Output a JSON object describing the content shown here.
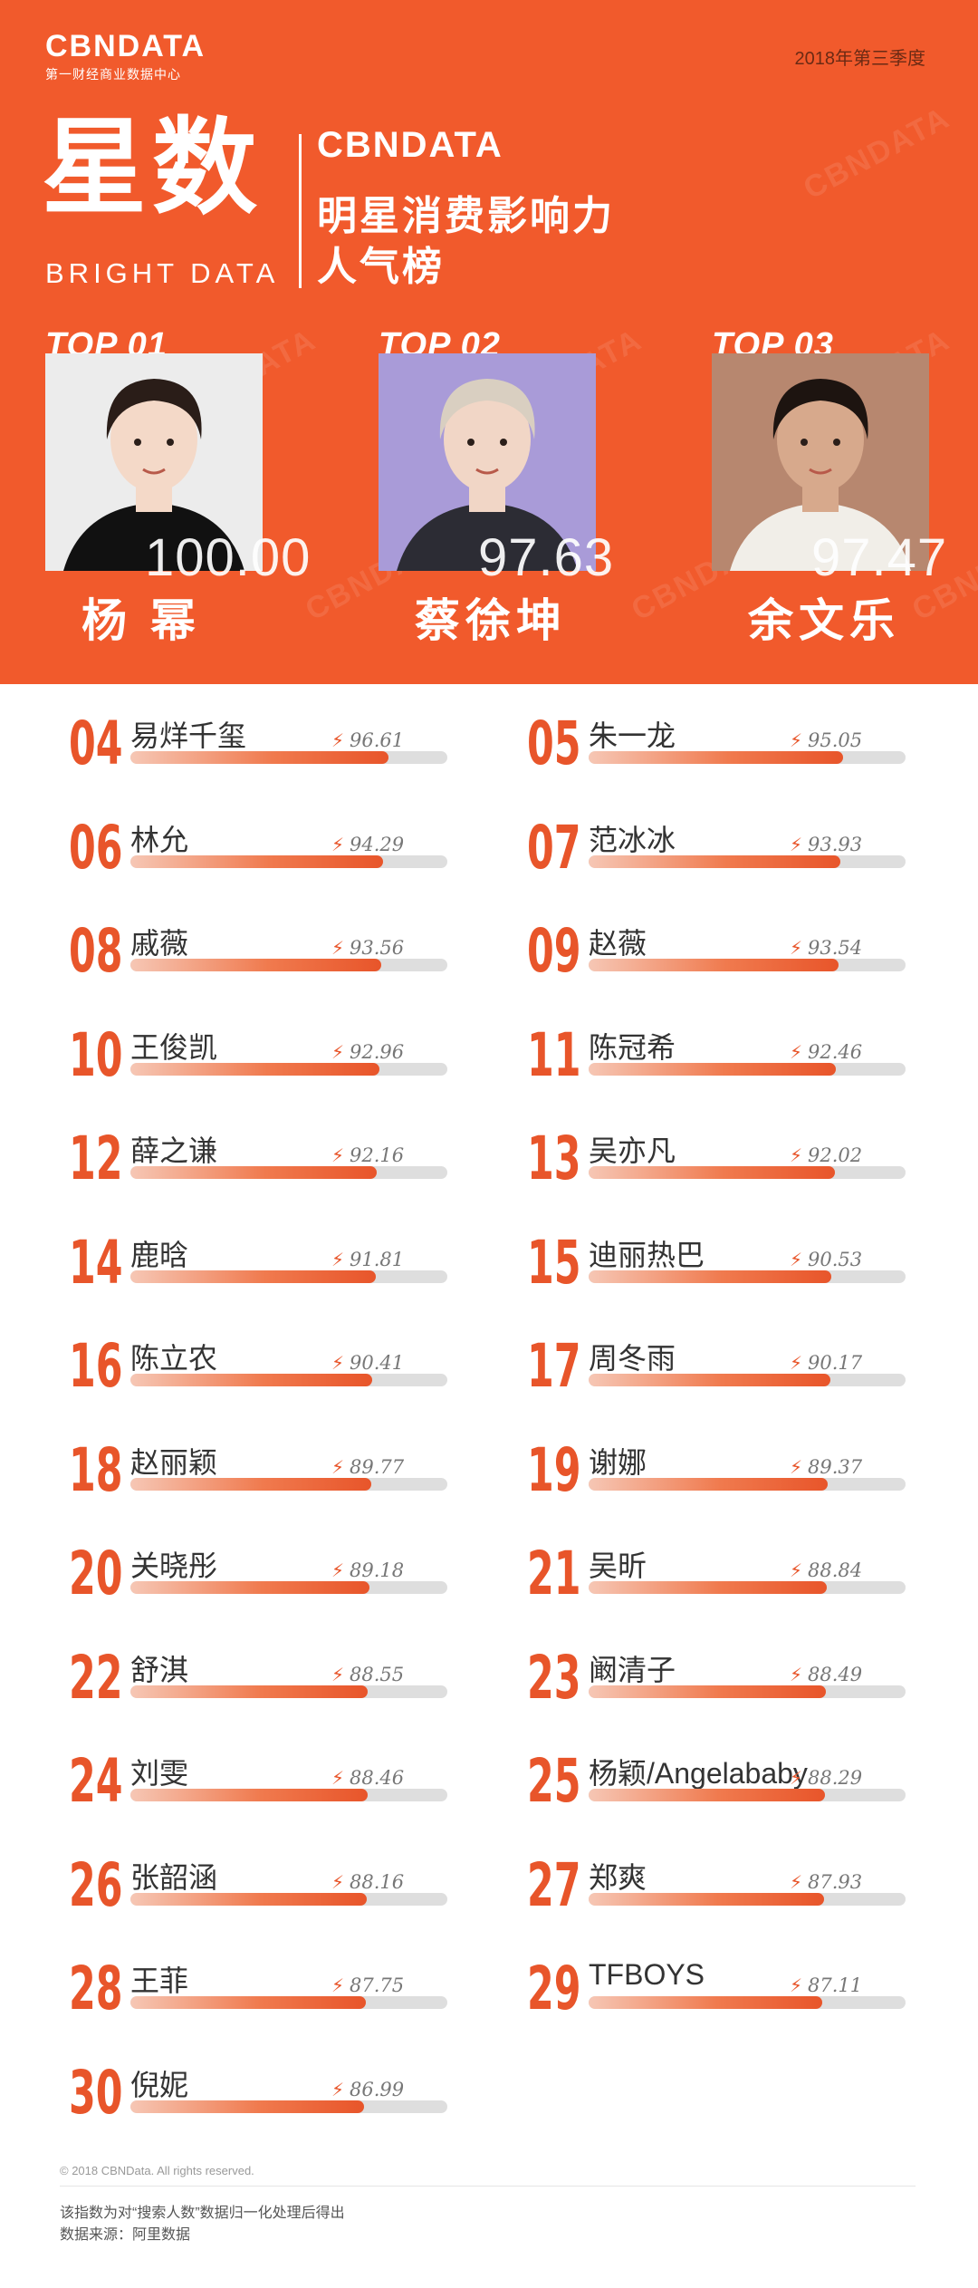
{
  "header": {
    "logo": "CBNDATA",
    "logo_sub": "第一财经商业数据中心",
    "season": "2018年第三季度",
    "big_title": "星数",
    "big_title_en": "BRIGHT  DATA",
    "brand": "CBNDATA",
    "subtitle_line1": "明星消费影响力",
    "subtitle_line2": "人气榜",
    "watermark": "CBNDATA"
  },
  "colors": {
    "accent": "#F15A2C",
    "rank": "#E8552A",
    "track": "#dedede"
  },
  "top3": [
    {
      "label": "TOP 01",
      "name": "杨 幂",
      "score": "100.00",
      "photo_bg": "#ececec",
      "hair": "#2a1d18",
      "skin": "#f4d9c8",
      "cloth": "#111111"
    },
    {
      "label": "TOP 02",
      "name": "蔡徐坤",
      "score": "97.63",
      "photo_bg": "#a99bd8",
      "hair": "#d9cfc1",
      "skin": "#f1d6c6",
      "cloth": "#2c2c34"
    },
    {
      "label": "TOP 03",
      "name": "余文乐",
      "score": "97.47",
      "photo_bg": "#b7876f",
      "hair": "#1d1410",
      "skin": "#d7a98c",
      "cloth": "#f1eee8"
    }
  ],
  "chart_data": {
    "type": "bar",
    "title": "明星消费影响力人气榜",
    "categories": [
      "易烊千玺",
      "朱一龙",
      "林允",
      "范冰冰",
      "戚薇",
      "赵薇",
      "王俊凯",
      "陈冠希",
      "薛之谦",
      "吴亦凡",
      "鹿晗",
      "迪丽热巴",
      "陈立农",
      "周冬雨",
      "赵丽颖",
      "谢娜",
      "关晓彤",
      "吴昕",
      "舒淇",
      "阚清子",
      "刘雯",
      "杨颖/Angelababy",
      "张韶涵",
      "郑爽",
      "王菲",
      "TFBOYS",
      "倪妮"
    ],
    "ranks": [
      "04",
      "05",
      "06",
      "07",
      "08",
      "09",
      "10",
      "11",
      "12",
      "13",
      "14",
      "15",
      "16",
      "17",
      "18",
      "19",
      "20",
      "21",
      "22",
      "23",
      "24",
      "25",
      "26",
      "27",
      "28",
      "29",
      "30"
    ],
    "values": [
      96.61,
      95.05,
      94.29,
      93.93,
      93.56,
      93.54,
      92.96,
      92.46,
      92.16,
      92.02,
      91.81,
      90.53,
      90.41,
      90.17,
      89.77,
      89.37,
      89.18,
      88.84,
      88.55,
      88.49,
      88.46,
      88.29,
      88.16,
      87.93,
      87.75,
      87.11,
      86.99
    ],
    "ylim": [
      0,
      100
    ],
    "bolt": "⚡"
  },
  "footer": {
    "copyright": "© 2018 CBNData. All rights reserved.",
    "note": "该指数为对“搜索人数”数据归一化处理后得出",
    "source": "数据来源：阿里数据"
  }
}
